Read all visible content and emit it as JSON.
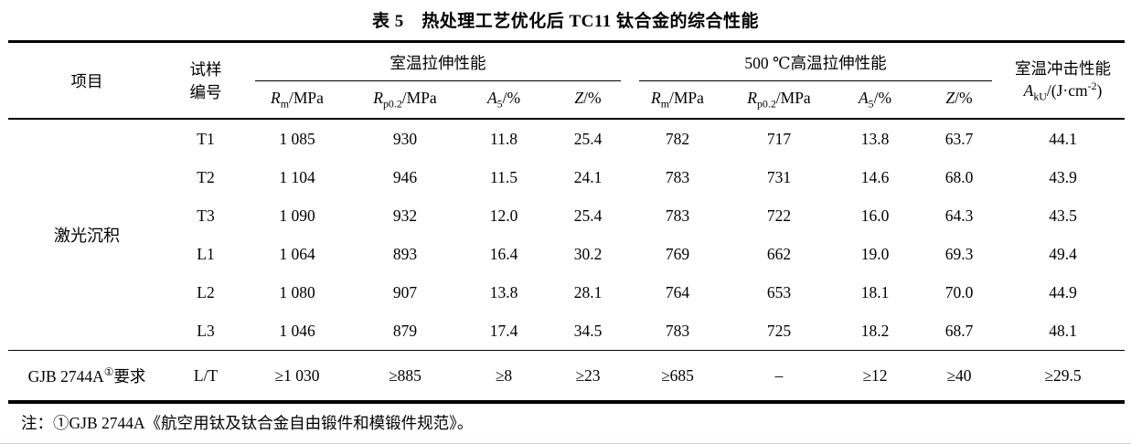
{
  "title": "表 5　热处理工艺优化后 TC11 钛合金的综合性能",
  "header": {
    "item": "项目",
    "sample_l1": "试样",
    "sample_l2": "编号",
    "rt_group": "室温拉伸性能",
    "ht_group": "500 ℃高温拉伸性能",
    "impact_title": "室温冲击性能",
    "impact_formula": {
      "sym": "A",
      "sub": "kU",
      "mid": "/(J·cm",
      "sup": "-2",
      "post": ")"
    },
    "sub_cols": [
      {
        "sym": "R",
        "sub": "m",
        "rest": "/MPa"
      },
      {
        "sym": "R",
        "sub": "p0.2",
        "rest": "/MPa"
      },
      {
        "sym": "A",
        "sub": "5",
        "rest": "/%"
      },
      {
        "sym": "Z",
        "sub": "",
        "rest": "/%"
      }
    ]
  },
  "body": {
    "group_label": "激光沉积",
    "rows": [
      {
        "sample": "T1",
        "values": [
          "1 085",
          "930",
          "11.8",
          "25.4",
          "782",
          "717",
          "13.8",
          "63.7",
          "44.1"
        ]
      },
      {
        "sample": "T2",
        "values": [
          "1 104",
          "946",
          "11.5",
          "24.1",
          "783",
          "731",
          "14.6",
          "68.0",
          "43.9"
        ]
      },
      {
        "sample": "T3",
        "values": [
          "1 090",
          "932",
          "12.0",
          "25.4",
          "783",
          "722",
          "16.0",
          "64.3",
          "43.5"
        ]
      },
      {
        "sample": "L1",
        "values": [
          "1 064",
          "893",
          "16.4",
          "30.2",
          "769",
          "662",
          "19.0",
          "69.3",
          "49.4"
        ]
      },
      {
        "sample": "L2",
        "values": [
          "1 080",
          "907",
          "13.8",
          "28.1",
          "764",
          "653",
          "18.1",
          "70.0",
          "44.9"
        ]
      },
      {
        "sample": "L3",
        "values": [
          "1 046",
          "879",
          "17.4",
          "34.5",
          "783",
          "725",
          "18.2",
          "68.7",
          "48.1"
        ]
      }
    ]
  },
  "requirement": {
    "label_pre": "GJB 2744A",
    "label_sup": "①",
    "label_post": "要求",
    "sample": "L/T",
    "values": [
      "≥1 030",
      "≥885",
      "≥8",
      "≥23",
      "≥685",
      "–",
      "≥12",
      "≥40",
      "≥29.5"
    ]
  },
  "note": "注：①GJB 2744A《航空用钛及钛合金自由锻件和模锻件规范》。"
}
